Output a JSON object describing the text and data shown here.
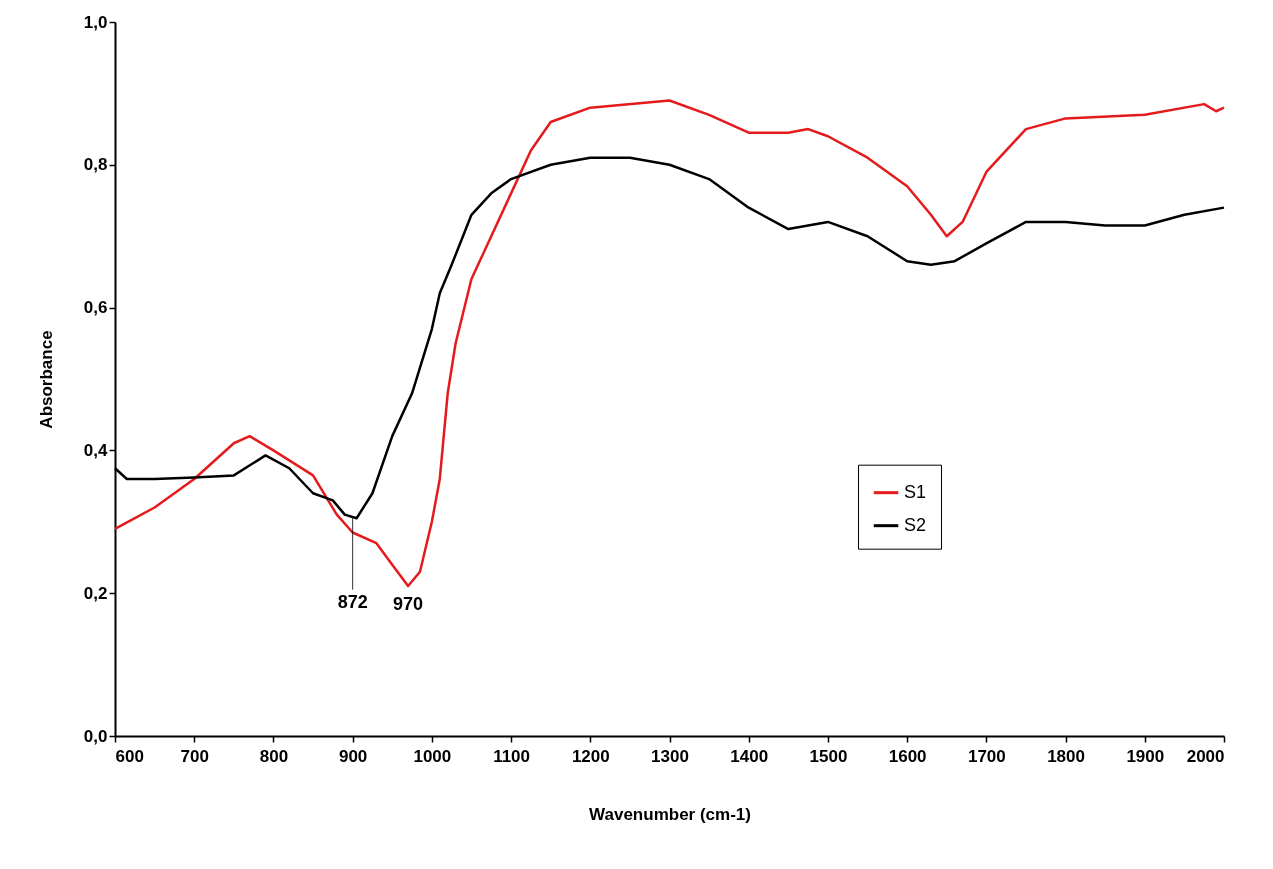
{
  "chart_data": {
    "type": "line",
    "xlabel": "Wavenumber (cm-1)",
    "ylabel": "Absorbance",
    "xlim": [
      600,
      2000
    ],
    "xticks": [
      600,
      700,
      800,
      900,
      1000,
      1100,
      1200,
      1300,
      1400,
      1500,
      1600,
      1700,
      1800,
      1900,
      2000
    ],
    "ylim": [
      0,
      1
    ],
    "yticks": [
      {
        "value": 0,
        "label": "0,0"
      },
      {
        "value": 0.2,
        "label": "0,2"
      },
      {
        "value": 0.4,
        "label": "0,4"
      },
      {
        "value": 0.6,
        "label": "0,6"
      },
      {
        "value": 0.8,
        "label": "0,8"
      },
      {
        "value": 1,
        "label": "1,0"
      }
    ],
    "grid": false,
    "legend": "right",
    "line_style": "solid",
    "marker": "none",
    "series": [
      {
        "name": "S1",
        "color": "#e41a1c",
        "x": [
          600,
          650,
          700,
          750,
          770,
          800,
          850,
          880,
          900,
          930,
          950,
          970,
          985,
          1000,
          1010,
          1020,
          1030,
          1050,
          1075,
          1100,
          1125,
          1150,
          1200,
          1300,
          1350,
          1400,
          1450,
          1475,
          1500,
          1550,
          1600,
          1630,
          1650,
          1670,
          1700,
          1750,
          1800,
          1900,
          1975,
          1990,
          2000
        ],
        "values": [
          0.29,
          0.32,
          0.36,
          0.41,
          0.42,
          0.4,
          0.365,
          0.31,
          0.285,
          0.27,
          0.24,
          0.21,
          0.23,
          0.3,
          0.36,
          0.48,
          0.55,
          0.64,
          0.7,
          0.76,
          0.82,
          0.86,
          0.88,
          0.89,
          0.87,
          0.845,
          0.845,
          0.85,
          0.84,
          0.81,
          0.77,
          0.73,
          0.7,
          0.72,
          0.79,
          0.85,
          0.865,
          0.87,
          0.885,
          0.875,
          0.88
        ]
      },
      {
        "name": "S2",
        "color": "#000000",
        "x": [
          600,
          615,
          650,
          700,
          750,
          790,
          820,
          850,
          875,
          890,
          905,
          925,
          950,
          975,
          1000,
          1010,
          1025,
          1050,
          1075,
          1100,
          1150,
          1200,
          1250,
          1300,
          1350,
          1400,
          1450,
          1500,
          1550,
          1600,
          1630,
          1660,
          1700,
          1750,
          1800,
          1850,
          1900,
          1950,
          2000
        ],
        "values": [
          0.375,
          0.36,
          0.36,
          0.362,
          0.365,
          0.393,
          0.375,
          0.34,
          0.33,
          0.31,
          0.305,
          0.34,
          0.42,
          0.48,
          0.57,
          0.62,
          0.66,
          0.73,
          0.76,
          0.78,
          0.8,
          0.81,
          0.81,
          0.8,
          0.78,
          0.74,
          0.71,
          0.72,
          0.7,
          0.665,
          0.66,
          0.665,
          0.69,
          0.72,
          0.72,
          0.715,
          0.715,
          0.73,
          0.74
        ]
      }
    ],
    "annotations": [
      {
        "text": "872",
        "x": 900,
        "y": 0.305
      },
      {
        "text": "970",
        "x": 970,
        "y": 0.21
      }
    ]
  }
}
